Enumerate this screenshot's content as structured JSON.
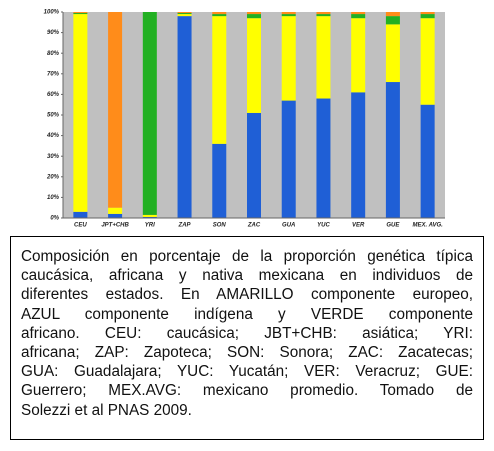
{
  "chart_data": {
    "type": "stacked_bar",
    "categories": [
      "CEU",
      "JPT+CHB",
      "YRI",
      "ZAP",
      "SON",
      "ZAC",
      "GUA",
      "YUC",
      "VER",
      "GUE",
      "MEX. AVG."
    ],
    "series": [
      {
        "color": "#1f5fd6",
        "values": [
          3,
          2,
          0.5,
          98,
          36,
          51,
          57,
          58,
          61,
          66,
          55
        ]
      },
      {
        "color": "#ffff00",
        "values": [
          96,
          3,
          1,
          1,
          62,
          46,
          41,
          40,
          36,
          28,
          42
        ]
      },
      {
        "color": "#22b022",
        "values": [
          0.5,
          0,
          98.5,
          0.5,
          1,
          2,
          1,
          1,
          2,
          4,
          2
        ]
      },
      {
        "color": "#ff8c1a",
        "values": [
          0.5,
          95,
          0,
          0.5,
          1,
          1,
          1,
          1,
          1,
          2,
          1
        ]
      }
    ],
    "ylim": [
      0,
      100
    ],
    "yticks": [
      {
        "value": 0,
        "label": "0%"
      },
      {
        "value": 10,
        "label": "10%"
      },
      {
        "value": 20,
        "label": "20%"
      },
      {
        "value": 30,
        "label": "30%"
      },
      {
        "value": 40,
        "label": "40%"
      },
      {
        "value": 50,
        "label": "50%"
      },
      {
        "value": 60,
        "label": "60%"
      },
      {
        "value": 70,
        "label": "70%"
      },
      {
        "value": 80,
        "label": "80%"
      },
      {
        "value": 90,
        "label": "90%"
      },
      {
        "value": 100,
        "label": "100%"
      }
    ],
    "background": "#c0c0c0"
  },
  "caption": {
    "lines": [
      "Composición en porcentaje de la proporción genética típica",
      "caucásica, africana y nativa mexicana en individuos de",
      "diferentes estados. En AMARILLO componente europeo,",
      "AZUL componente indígena y VERDE componente",
      "africano. CEU: caucásica; JBT+CHB: asiática; YRI:",
      "africana; ZAP: Zapoteca; SON: Sonora; ZAC: Zacatecas;",
      "GUA: Guadalajara; YUC: Yucatán; VER: Veracruz; GUE:",
      "Guerrero; MEX.AVG: mexicano promedio. Tomado de",
      "Solezzi et al PNAS 2009."
    ]
  }
}
